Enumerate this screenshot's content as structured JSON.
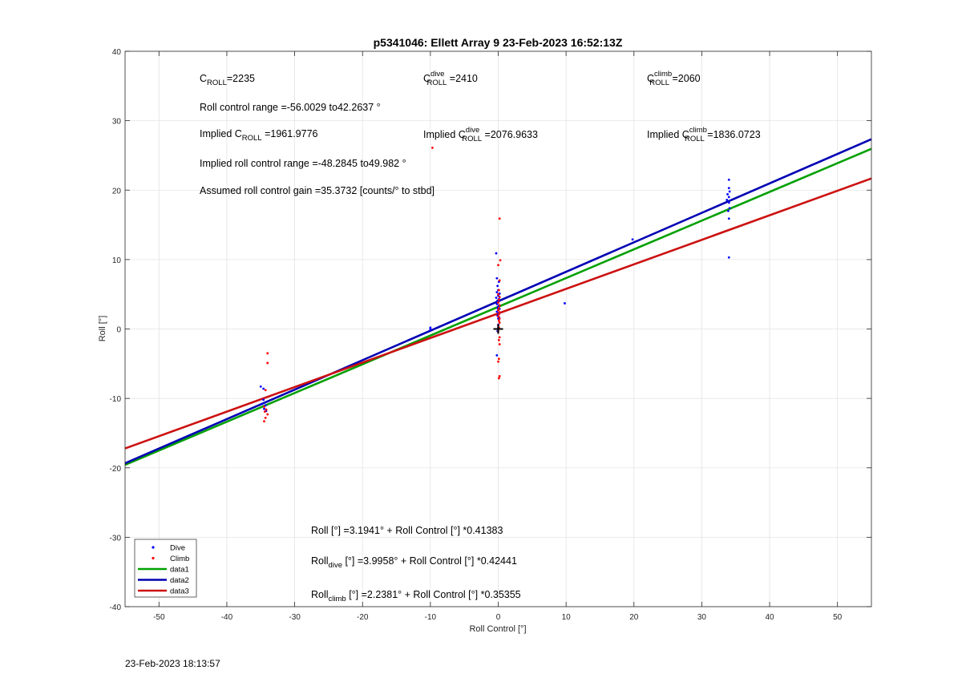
{
  "chart_data": {
    "type": "scatter",
    "title": "p5341046: Ellett Array 9 23-Feb-2023 16:52:13Z",
    "xlabel": "Roll Control [°]",
    "ylabel": "Roll [°]",
    "xlim": [
      -55,
      55
    ],
    "ylim": [
      -40,
      40
    ],
    "xticks": [
      -50,
      -40,
      -30,
      -20,
      -10,
      0,
      10,
      20,
      30,
      40,
      50
    ],
    "yticks": [
      -40,
      -30,
      -20,
      -10,
      0,
      10,
      20,
      30,
      40
    ],
    "grid": true,
    "legend_position": "bottom-left",
    "legend": [
      {
        "label": "Dive",
        "kind": "marker",
        "color": "#0000ff"
      },
      {
        "label": "Climb",
        "kind": "marker",
        "color": "#ff0000"
      },
      {
        "label": "data1",
        "kind": "line",
        "color": "#00a000"
      },
      {
        "label": "data2",
        "kind": "line",
        "color": "#0000b4"
      },
      {
        "label": "data3",
        "kind": "line",
        "color": "#cc1111"
      }
    ],
    "fit_lines": [
      {
        "name": "data1",
        "color": "#00a000",
        "intercept": 3.1941,
        "slope": 0.41383
      },
      {
        "name": "data2",
        "color": "#0000b4",
        "intercept": 3.9958,
        "slope": 0.42441
      },
      {
        "name": "data3",
        "color": "#cc1111",
        "intercept": 2.2381,
        "slope": 0.35355
      }
    ],
    "series": [
      {
        "name": "Dive",
        "color": "#0000ff",
        "points": [
          [
            -35,
            -8.3
          ],
          [
            -34.6,
            -8.6
          ],
          [
            -34.6,
            -10.2
          ],
          [
            -34.8,
            -10.8
          ],
          [
            -34.3,
            -11.0
          ],
          [
            -34.5,
            -11.5
          ],
          [
            -34.2,
            -11.8
          ],
          [
            -10,
            0.2
          ],
          [
            -10,
            0
          ],
          [
            -10,
            -0.1
          ],
          [
            -0.3,
            10.9
          ],
          [
            -0.2,
            7.3
          ],
          [
            0.1,
            6.8
          ],
          [
            -0.1,
            6.2
          ],
          [
            0,
            5.6
          ],
          [
            -0.2,
            5.3
          ],
          [
            0.2,
            5.1
          ],
          [
            0,
            4.8
          ],
          [
            -0.3,
            4.5
          ],
          [
            0.1,
            4.3
          ],
          [
            -0.1,
            4.1
          ],
          [
            0,
            3.9
          ],
          [
            -0.2,
            3.6
          ],
          [
            0.1,
            3.4
          ],
          [
            0,
            3.2
          ],
          [
            -0.1,
            3.0
          ],
          [
            0.2,
            2.9
          ],
          [
            0,
            2.7
          ],
          [
            -0.2,
            2.5
          ],
          [
            0.1,
            2.3
          ],
          [
            0,
            2.1
          ],
          [
            -0.1,
            1.9
          ],
          [
            0.1,
            1.7
          ],
          [
            0,
            1.5
          ],
          [
            0,
            0.6
          ],
          [
            0,
            0.2
          ],
          [
            -0.1,
            -0.3
          ],
          [
            -0.2,
            -3.8
          ],
          [
            9.8,
            3.7
          ],
          [
            19.8,
            12.9
          ],
          [
            34,
            21.5
          ],
          [
            34,
            20.3
          ],
          [
            34.1,
            19.8
          ],
          [
            33.8,
            19.4
          ],
          [
            34,
            19.0
          ],
          [
            33.7,
            18.6
          ],
          [
            34,
            18.2
          ],
          [
            34.1,
            17.4
          ],
          [
            33.9,
            17.0
          ],
          [
            34,
            15.9
          ],
          [
            34,
            10.3
          ]
        ]
      },
      {
        "name": "Climb",
        "color": "#ff0000",
        "points": [
          [
            -34,
            -3.5
          ],
          [
            -34,
            -4.9
          ],
          [
            -34.3,
            -8.8
          ],
          [
            -34.5,
            -11.2
          ],
          [
            -34.2,
            -11.6
          ],
          [
            -34.4,
            -11.9
          ],
          [
            -34,
            -12.3
          ],
          [
            -34.3,
            -12.8
          ],
          [
            -34.5,
            -13.3
          ],
          [
            -9.7,
            26.1
          ],
          [
            0.2,
            15.9
          ],
          [
            0.3,
            9.9
          ],
          [
            0,
            9.2
          ],
          [
            0.2,
            7.0
          ],
          [
            0.1,
            5.6
          ],
          [
            0,
            5.0
          ],
          [
            0.2,
            4.6
          ],
          [
            0.1,
            4.2
          ],
          [
            0,
            3.8
          ],
          [
            0.2,
            3.4
          ],
          [
            0.1,
            3.0
          ],
          [
            0,
            2.7
          ],
          [
            0.2,
            2.4
          ],
          [
            0.1,
            2.1
          ],
          [
            0,
            1.8
          ],
          [
            0.2,
            1.5
          ],
          [
            0.1,
            1.2
          ],
          [
            0.2,
            0.9
          ],
          [
            0,
            0.5
          ],
          [
            0.1,
            0.2
          ],
          [
            0,
            -0.3
          ],
          [
            0.2,
            -1.2
          ],
          [
            0.1,
            -1.6
          ],
          [
            0.2,
            -2.2
          ],
          [
            0.1,
            -4.3
          ],
          [
            0,
            -4.7
          ],
          [
            0.2,
            -6.8
          ],
          [
            0.1,
            -7.1
          ]
        ]
      }
    ],
    "marker": {
      "x": 0,
      "y": 0,
      "symbol": "+"
    }
  },
  "annotations": {
    "c_roll": {
      "pre": "C",
      "sub": "ROLL",
      "post": "=2235"
    },
    "c_roll_dive": {
      "pre": "C",
      "sup": "dive",
      "sub": "ROLL",
      "post": " =2410"
    },
    "c_roll_climb": {
      "pre": "C",
      "sup": "climb",
      "sub": "ROLL",
      "post": " =2060"
    },
    "roll_range": "Roll control range =-56.0029 to42.2637 °",
    "implied_c_roll": {
      "pre": "Implied C",
      "sub": "ROLL",
      "post": " =1961.9776"
    },
    "implied_c_dive": {
      "pre": "Implied C",
      "sup": "dive",
      "sub": "ROLL",
      "post": " =2076.9633"
    },
    "implied_c_climb": {
      "pre": "Implied C",
      "sup": "climb",
      "sub": "ROLL",
      "post": " =1836.0723"
    },
    "implied_range": "Implied roll control range =-48.2845 to49.982 °",
    "gain": "Assumed roll control gain =35.3732 [counts/° to stbd]",
    "fit_all": "Roll [°] =3.1941° + Roll Control [°] *0.41383",
    "fit_dive": {
      "pre": "Roll",
      "sub": "dive",
      "post": " [°] =3.9958° + Roll Control [°] *0.42441"
    },
    "fit_climb": {
      "pre": "Roll",
      "sub": "climb",
      "post": " [°] =2.2381° + Roll Control [°] *0.35355"
    }
  },
  "footer": {
    "timestamp": "23-Feb-2023 18:13:57"
  }
}
